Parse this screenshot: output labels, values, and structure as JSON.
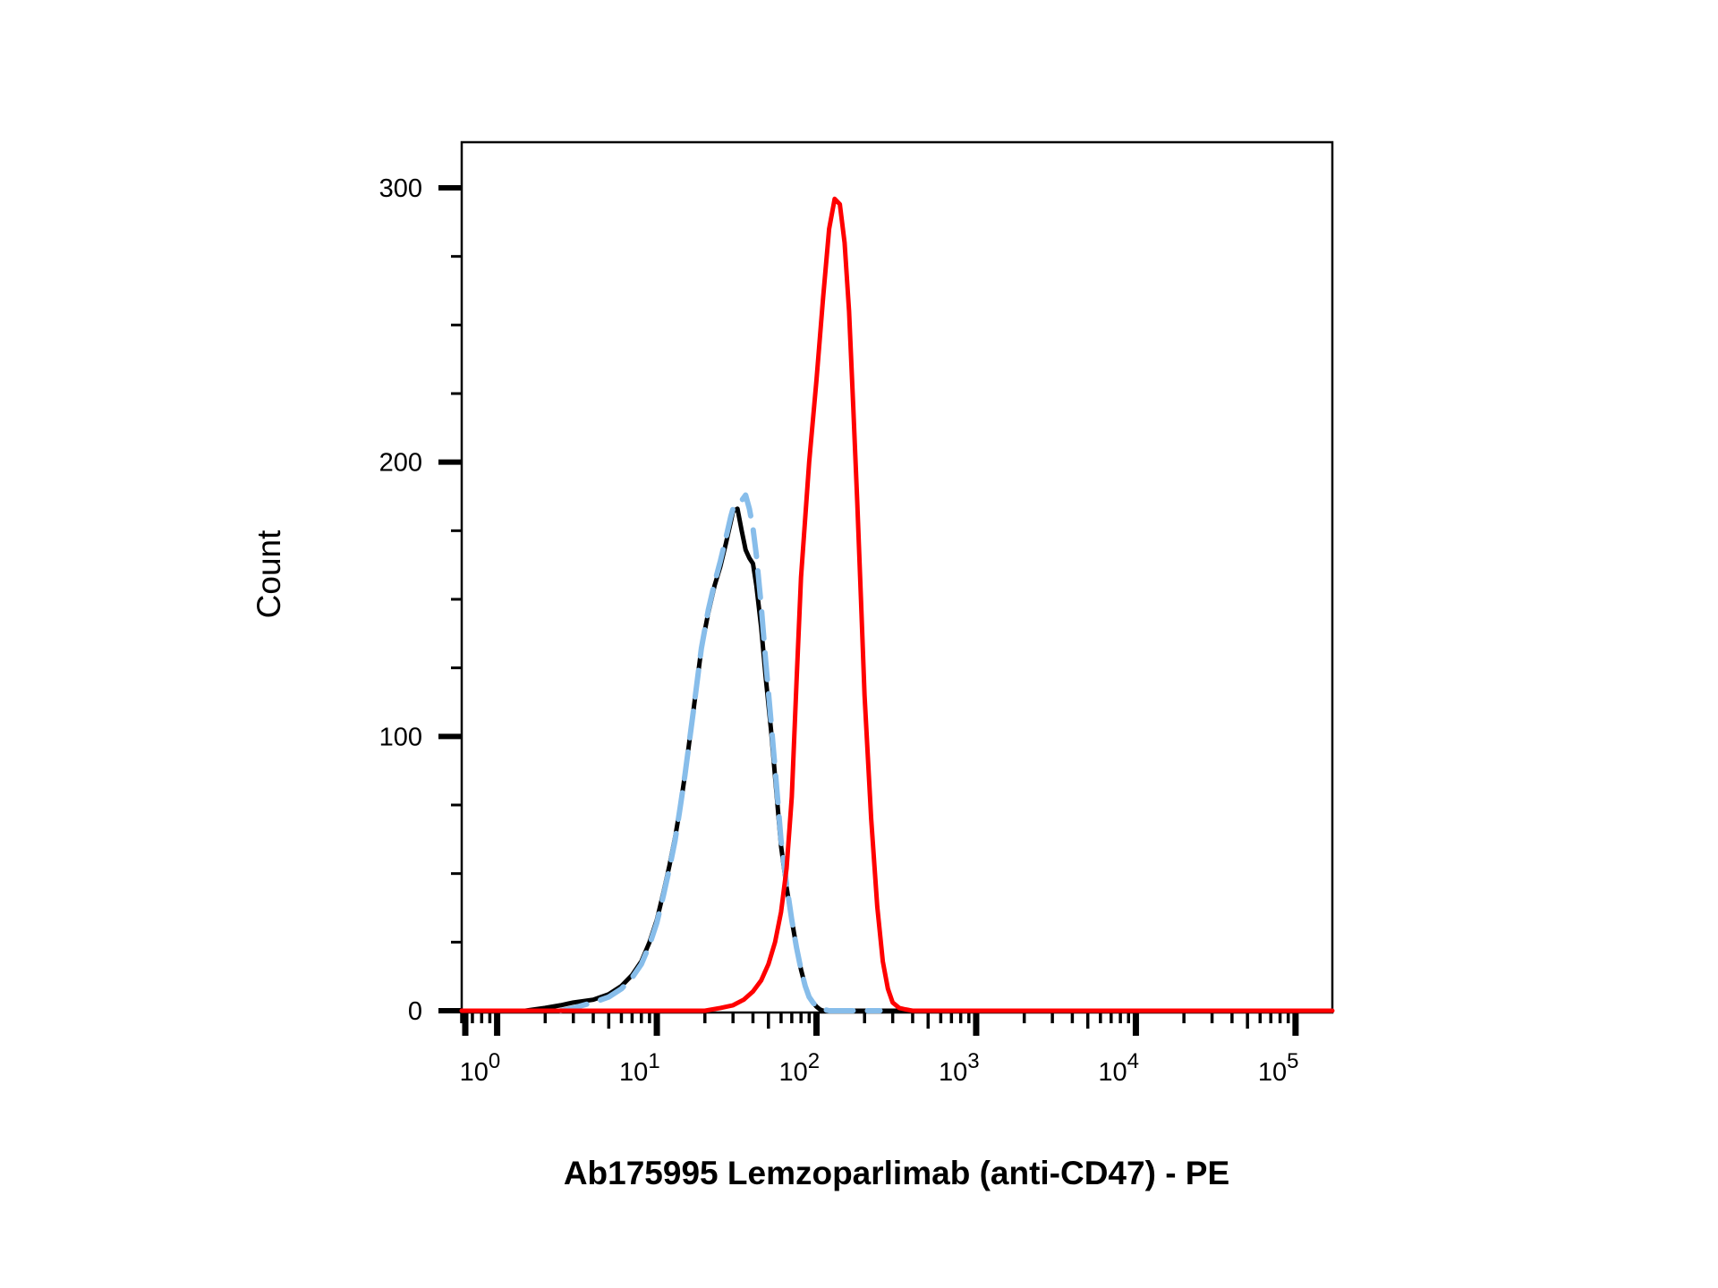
{
  "chart_data": {
    "type": "line",
    "title": "",
    "xlabel": "Ab175995 Lemzoparlimab (anti-CD47) - PE",
    "ylabel": "Count",
    "x_scale": "log",
    "xlim": [
      0.6,
      170000
    ],
    "ylim": [
      0,
      316
    ],
    "x_ticks": [
      1,
      10,
      100,
      1000,
      10000,
      100000
    ],
    "x_tick_labels": [
      {
        "base": "10",
        "exp": "0"
      },
      {
        "base": "10",
        "exp": "1"
      },
      {
        "base": "10",
        "exp": "2"
      },
      {
        "base": "10",
        "exp": "3"
      },
      {
        "base": "10",
        "exp": "4"
      },
      {
        "base": "10",
        "exp": "5"
      }
    ],
    "y_ticks": [
      0,
      100,
      200,
      300
    ],
    "y_tick_labels": [
      "0",
      "100",
      "200",
      "300"
    ],
    "y_minor_ticks": [
      25,
      50,
      75,
      125,
      150,
      175,
      225,
      250,
      275
    ],
    "grid": false,
    "legend": "none",
    "series": [
      {
        "color": "#000000",
        "style": "solid",
        "x": [
          1.5,
          2.0,
          2.5,
          3.0,
          4.0,
          5.0,
          6.0,
          7.0,
          8.0,
          9.0,
          10,
          11,
          12,
          13,
          14,
          15,
          17,
          19,
          21,
          23,
          25,
          27,
          29,
          30,
          32,
          34,
          36,
          38,
          40,
          42,
          45,
          48,
          52,
          56,
          60,
          65,
          70,
          75,
          80,
          85,
          90,
          95,
          100,
          105,
          110,
          120,
          130,
          150,
          170,
          200,
          10000,
          150000
        ],
        "y": [
          0,
          1,
          2,
          3,
          4,
          6,
          9,
          13,
          18,
          25,
          33,
          43,
          53,
          63,
          74,
          86,
          110,
          132,
          145,
          155,
          162,
          170,
          178,
          182,
          183,
          175,
          168,
          165,
          163,
          155,
          140,
          122,
          102,
          80,
          60,
          45,
          33,
          23,
          15,
          9,
          5,
          3,
          1.5,
          0.5,
          0,
          0,
          0,
          0,
          0,
          0,
          0,
          0
        ]
      },
      {
        "color": "#87bdea",
        "style": "dashed",
        "x": [
          2.5,
          3.0,
          4.0,
          5.0,
          6.0,
          7.0,
          8.0,
          9.0,
          10,
          11,
          12,
          13,
          14,
          15,
          17,
          19,
          21,
          23,
          25,
          27,
          29,
          30,
          32,
          34,
          36,
          38,
          40,
          42,
          45,
          48,
          52,
          56,
          60,
          65,
          70,
          75,
          80,
          85,
          90,
          95,
          100,
          110,
          120,
          150,
          200,
          250
        ],
        "y": [
          0,
          1,
          3,
          5,
          8,
          12,
          17,
          24,
          32,
          42,
          52,
          62,
          74,
          86,
          110,
          132,
          146,
          156,
          164,
          172,
          180,
          183,
          184,
          186,
          188,
          183,
          176,
          166,
          148,
          128,
          105,
          83,
          62,
          46,
          33,
          23,
          15,
          9,
          5,
          3,
          1.5,
          0.5,
          0,
          0,
          0,
          0
        ]
      },
      {
        "color": "#ff0000",
        "style": "solid",
        "x": [
          0.6,
          15,
          20,
          25,
          30,
          35,
          40,
          45,
          50,
          55,
          60,
          65,
          70,
          75,
          80,
          90,
          100,
          110,
          120,
          130,
          140,
          150,
          160,
          170,
          180,
          190,
          200,
          220,
          240,
          260,
          280,
          300,
          330,
          360,
          400,
          450,
          500,
          600,
          170000
        ],
        "y": [
          0,
          0,
          0,
          1,
          2,
          4,
          7,
          11,
          17,
          25,
          36,
          52,
          78,
          120,
          158,
          200,
          230,
          260,
          285,
          296,
          294,
          280,
          255,
          220,
          185,
          150,
          115,
          70,
          38,
          18,
          8,
          3,
          1,
          0.5,
          0,
          0,
          0,
          0,
          0
        ]
      }
    ]
  }
}
